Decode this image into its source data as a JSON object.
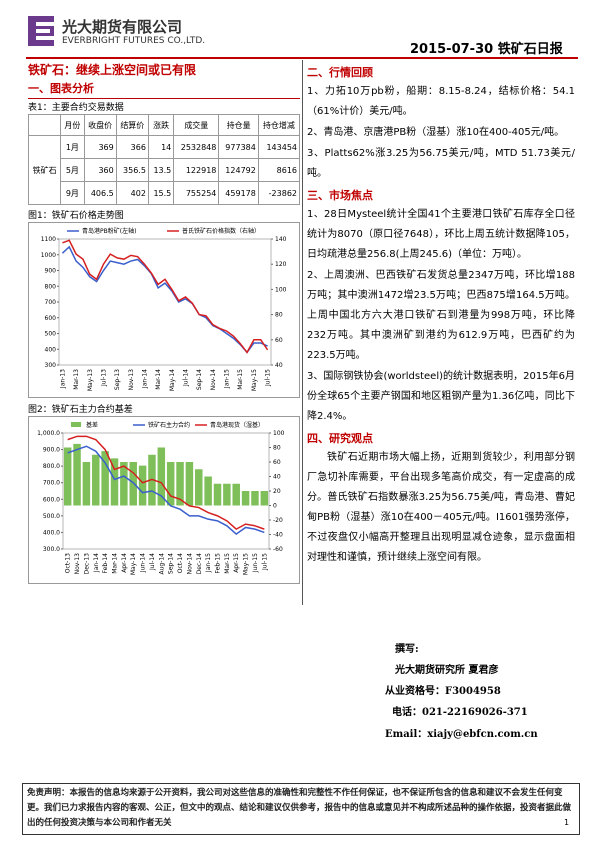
{
  "header": {
    "company": "光大期货有限公司",
    "company_en": "EVERBRIGHT FUTURES CO.,LTD.",
    "date": "2015-07-30",
    "report": "铁矿石日报"
  },
  "title": "铁矿石：继续上涨空间或已有限",
  "section1": "一、图表分析",
  "table": {
    "caption": "表1：主要合约交易数据",
    "headers": [
      "月份",
      "收盘价",
      "结算价",
      "涨跌",
      "成交量",
      "持仓量",
      "持仓增减"
    ],
    "row_label": "铁矿石",
    "rows": [
      [
        "1月",
        369,
        366,
        14,
        2532848,
        977384,
        143454
      ],
      [
        "5月",
        360,
        356.5,
        13.5,
        122918,
        124792,
        8616
      ],
      [
        "9月",
        406.5,
        402,
        15.5,
        755254,
        459178,
        -23862
      ]
    ]
  },
  "chart_data": [
    {
      "type": "line",
      "caption": "图1：铁矿石价格走势图",
      "categories": [
        "Jan-13",
        null,
        "Mar-13",
        null,
        "May-13",
        null,
        "Jul-13",
        null,
        "Sep-13",
        null,
        "Nov-13",
        null,
        "Jan-14",
        null,
        "Mar-14",
        null,
        "May-14",
        null,
        "Jul-14",
        null,
        "Sep-14",
        null,
        "Nov-14",
        null,
        "Jan-15",
        null,
        "Mar-15",
        null,
        "May-15",
        null,
        "Jul-15"
      ],
      "series": [
        {
          "name": "青岛港PB粉矿(左轴)",
          "color": "#3a5fcd",
          "values": [
            1010,
            1050,
            960,
            920,
            860,
            830,
            900,
            960,
            950,
            940,
            960,
            970,
            930,
            880,
            790,
            820,
            770,
            700,
            720,
            690,
            620,
            600,
            550,
            530,
            500,
            470,
            430,
            380,
            440,
            440,
            420
          ]
        },
        {
          "name": "普氏铁矿石价格指数（右轴）",
          "color": "#d62020",
          "axis": "y2",
          "values": [
            137,
            139,
            128,
            124,
            112,
            108,
            120,
            128,
            125,
            124,
            127,
            126,
            120,
            113,
            104,
            108,
            100,
            91,
            94,
            89,
            80,
            79,
            72,
            69,
            67,
            63,
            57,
            50,
            60,
            60,
            52
          ]
        }
      ],
      "ylim": [
        300,
        1100
      ],
      "yticks": [
        300,
        400,
        500,
        600,
        700,
        800,
        900,
        1000,
        1100
      ],
      "y2lim": [
        40,
        140
      ],
      "y2ticks": [
        40,
        60,
        80,
        100,
        120,
        140
      ]
    },
    {
      "type": "combo",
      "caption": "图2：铁矿石主力合约基差",
      "categories": [
        "Oct-13",
        "Nov-13",
        "Dec-13",
        "Jan-14",
        "Feb-14",
        "Mar-14",
        "Apr-14",
        "May-14",
        "Jun-14",
        "Jul-14",
        "Aug-14",
        "Sep-14",
        "Oct-14",
        "Nov-14",
        "Dec-14",
        "Jan-15",
        "Feb-15",
        "Mar-15",
        "Apr-15",
        "May-15",
        "Jun-15",
        "Jul-15"
      ],
      "series": [
        {
          "name": "基差",
          "color": "#7fbf5a",
          "axis": "y2",
          "kind": "bar",
          "values": [
            80,
            85,
            60,
            70,
            75,
            65,
            60,
            60,
            55,
            70,
            80,
            60,
            60,
            60,
            50,
            40,
            30,
            30,
            30,
            20,
            20,
            20
          ]
        },
        {
          "name": "铁矿石主力合约",
          "color": "#3a5fcd",
          "values": [
            880,
            900,
            920,
            890,
            820,
            720,
            740,
            700,
            640,
            650,
            620,
            560,
            540,
            500,
            500,
            480,
            470,
            440,
            390,
            430,
            420,
            400
          ]
        },
        {
          "name": "青岛港现货（湿基）",
          "color": "#d62020",
          "values": [
            960,
            980,
            980,
            960,
            900,
            780,
            800,
            760,
            700,
            720,
            700,
            620,
            600,
            560,
            550,
            520,
            500,
            470,
            420,
            450,
            440,
            420
          ]
        }
      ],
      "ylim": [
        300,
        1000
      ],
      "yticks": [
        {
          "value": 300,
          "label": "300.0"
        },
        {
          "value": 400,
          "label": "400.0"
        },
        {
          "value": 500,
          "label": "500.0"
        },
        {
          "value": 600,
          "label": "600.0"
        },
        {
          "value": 700,
          "label": "700.0"
        },
        {
          "value": 800,
          "label": "800.0"
        },
        {
          "value": 900,
          "label": "900.0"
        },
        {
          "value": 1000,
          "label": "1,000.0"
        }
      ],
      "y2lim": [
        -60,
        100
      ],
      "y2ticks": [
        -60,
        -40,
        -20,
        0,
        20,
        40,
        60,
        80,
        100
      ]
    }
  ],
  "sections": [
    {
      "heading": "二、行情回顾",
      "paragraphs": [
        "1、力拓10万pb粉，船期：8.15-8.24，结标价格：54.1（61%计价）美元/吨。",
        "2、青岛港、京唐港PB粉（湿基）涨10在400-405元/吨。",
        "3、Platts62%涨3.25为56.75美元/吨，MTD 51.73美元/吨。"
      ]
    },
    {
      "heading": "三、市场焦点",
      "paragraphs": [
        "1、28日Mysteel统计全国41个主要港口铁矿石库存全口径统计为8070（原口径7648），环比上周五统计数据降105，日均疏港总量256.8(上周245.6)（单位：万吨）。",
        "2、上周澳洲、巴西铁矿石发货总量2347万吨，环比增188万吨；其中澳洲1472增23.5万吨；巴西875增164.5万吨。上周中国北方六大港口铁矿石到港量为998万吨，环比降232万吨。其中澳洲矿到港约为612.9万吨，巴西矿约为223.5万吨。",
        "3、国际钢铁协会(worldsteel)的统计数据表明，2015年6月份全球65个主要产钢国和地区粗钢产量为1.36亿吨，同比下降2.4%。"
      ]
    },
    {
      "heading": "四、研究观点",
      "paragraphs": [
        "铁矿石近期市场大幅上扬，近期到货较少，利用部分钢厂急切补库需要，平台出现多笔高价成交，有一定虚高的成分。普氏铁矿石指数暴涨3.25为56.75美/吨，青岛港、曹妃甸PB粉（湿基）涨10在400－405元/吨。I1601强势涨停，不过夜盘仅小幅高开整理且出现明显减仓迹象，显示盘面相对理性和谨慎，预计继续上涨空间有限。"
      ]
    }
  ],
  "author": {
    "label": "撰写:",
    "name": "光大期货研究所 夏君彦",
    "license": "从业资格号：F3004958",
    "phone": "电话：021-22169026-371",
    "email": "Email：xiajy@ebfcn.com.cn"
  },
  "disclaimer": "免责声明：本报告的信息均来源于公开资料，我公司对这些信息的准确性和完整性不作任何保证，也不保证所包含的信息和建议不会发生任何变更。我们已力求报告内容的客观、公正，但文中的观点、结论和建议仅供参考，报告中的信息或意见并不构成所述品种的操作依据，投资者据此做出的任何投资决策与本公司和作者无关",
  "page_number": 1
}
